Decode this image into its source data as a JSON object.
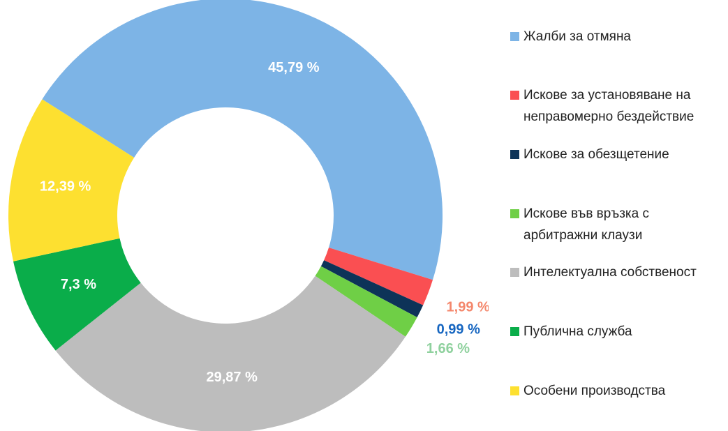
{
  "chart_data": {
    "type": "donut",
    "categories": [
      "Жалби за отмяна",
      "Искове за установяване на неправомерно бездействие",
      "Искове за обезщетение",
      "Искове във връзка с арбитражни клаузи",
      "Интелектуална собственост",
      "Публична служба",
      "Особени производства"
    ],
    "values": [
      45.79,
      1.99,
      0.99,
      1.66,
      29.87,
      7.3,
      12.39
    ],
    "value_labels": [
      "45,79 %",
      "1,99 %",
      "0,99 %",
      "1,66 %",
      "29,87 %",
      "7,3 %",
      "12,39 %"
    ],
    "colors": [
      "#7db4e6",
      "#fa4f52",
      "#0d3358",
      "#6fcf46",
      "#bdbdbd",
      "#0aad4a",
      "#fde030"
    ],
    "label_colors": [
      "#ffffff",
      "#f4876c",
      "#1565c0",
      "#8fd19e",
      "#ffffff",
      "#ffffff",
      "#ffffff"
    ],
    "legend": "right"
  }
}
